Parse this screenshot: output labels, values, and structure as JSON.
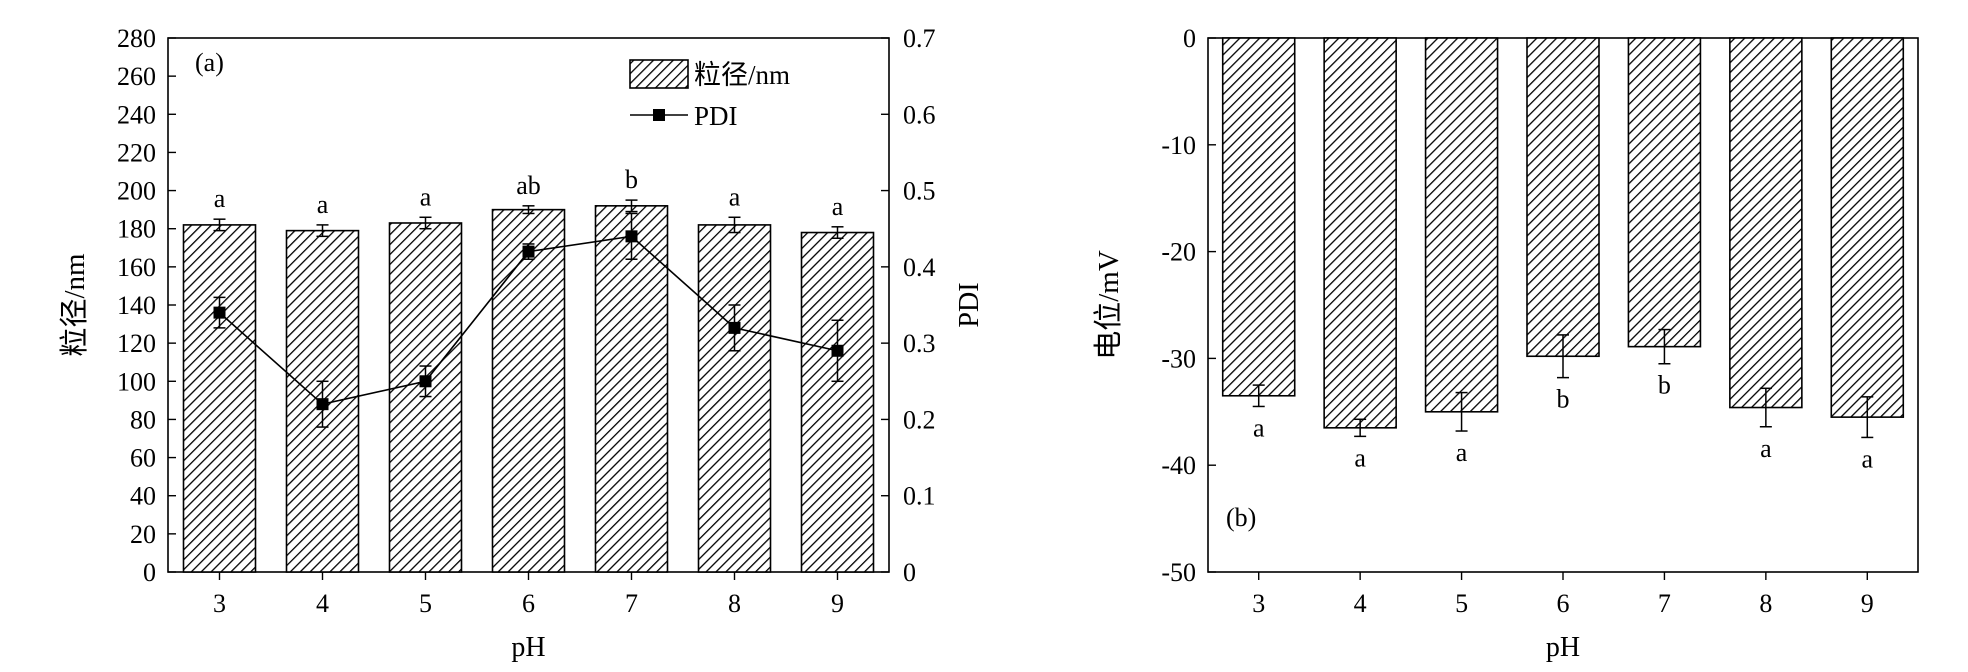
{
  "chart_data": [
    {
      "panel_label": "(a)",
      "type": "bar+line",
      "xlabel": "pH",
      "ylabel": "粒径/nm",
      "y2label": "PDI",
      "categories": [
        "3",
        "4",
        "5",
        "6",
        "7",
        "8",
        "9"
      ],
      "ylim": [
        0,
        280
      ],
      "yticks": [
        0,
        20,
        40,
        60,
        80,
        100,
        120,
        140,
        160,
        180,
        200,
        220,
        240,
        260,
        280
      ],
      "y2lim": [
        0,
        0.7
      ],
      "y2ticks": [
        "0",
        "0.1",
        "0.2",
        "0.3",
        "0.4",
        "0.5",
        "0.6",
        "0.7"
      ],
      "legend_position": "top-right",
      "series": [
        {
          "name": "粒径/nm",
          "kind": "bar",
          "axis": "left",
          "values": [
            182,
            179,
            183,
            190,
            192,
            182,
            178
          ],
          "errors": [
            3,
            3,
            3,
            2,
            3,
            4,
            3
          ],
          "letters": [
            "a",
            "a",
            "a",
            "ab",
            "b",
            "a",
            "a"
          ]
        },
        {
          "name": "PDI",
          "kind": "line",
          "axis": "right",
          "values": [
            0.34,
            0.22,
            0.25,
            0.42,
            0.44,
            0.32,
            0.29
          ],
          "errors": [
            0.02,
            0.03,
            0.02,
            0.01,
            0.03,
            0.03,
            0.04
          ]
        }
      ]
    },
    {
      "panel_label": "(b)",
      "type": "bar",
      "xlabel": "pH",
      "ylabel": "电位/mV",
      "categories": [
        "3",
        "4",
        "5",
        "6",
        "7",
        "8",
        "9"
      ],
      "ylim": [
        -50,
        0
      ],
      "yticks": [
        0,
        -10,
        -20,
        -30,
        -40,
        -50
      ],
      "series": [
        {
          "kind": "bar",
          "values": [
            -33.5,
            -36.5,
            -35,
            -29.8,
            -28.9,
            -34.6,
            -35.5
          ],
          "errors": [
            1.0,
            0.8,
            1.8,
            2.0,
            1.6,
            1.8,
            1.9
          ],
          "letters": [
            "a",
            "a",
            "a",
            "b",
            "b",
            "a",
            "a"
          ]
        }
      ]
    }
  ]
}
